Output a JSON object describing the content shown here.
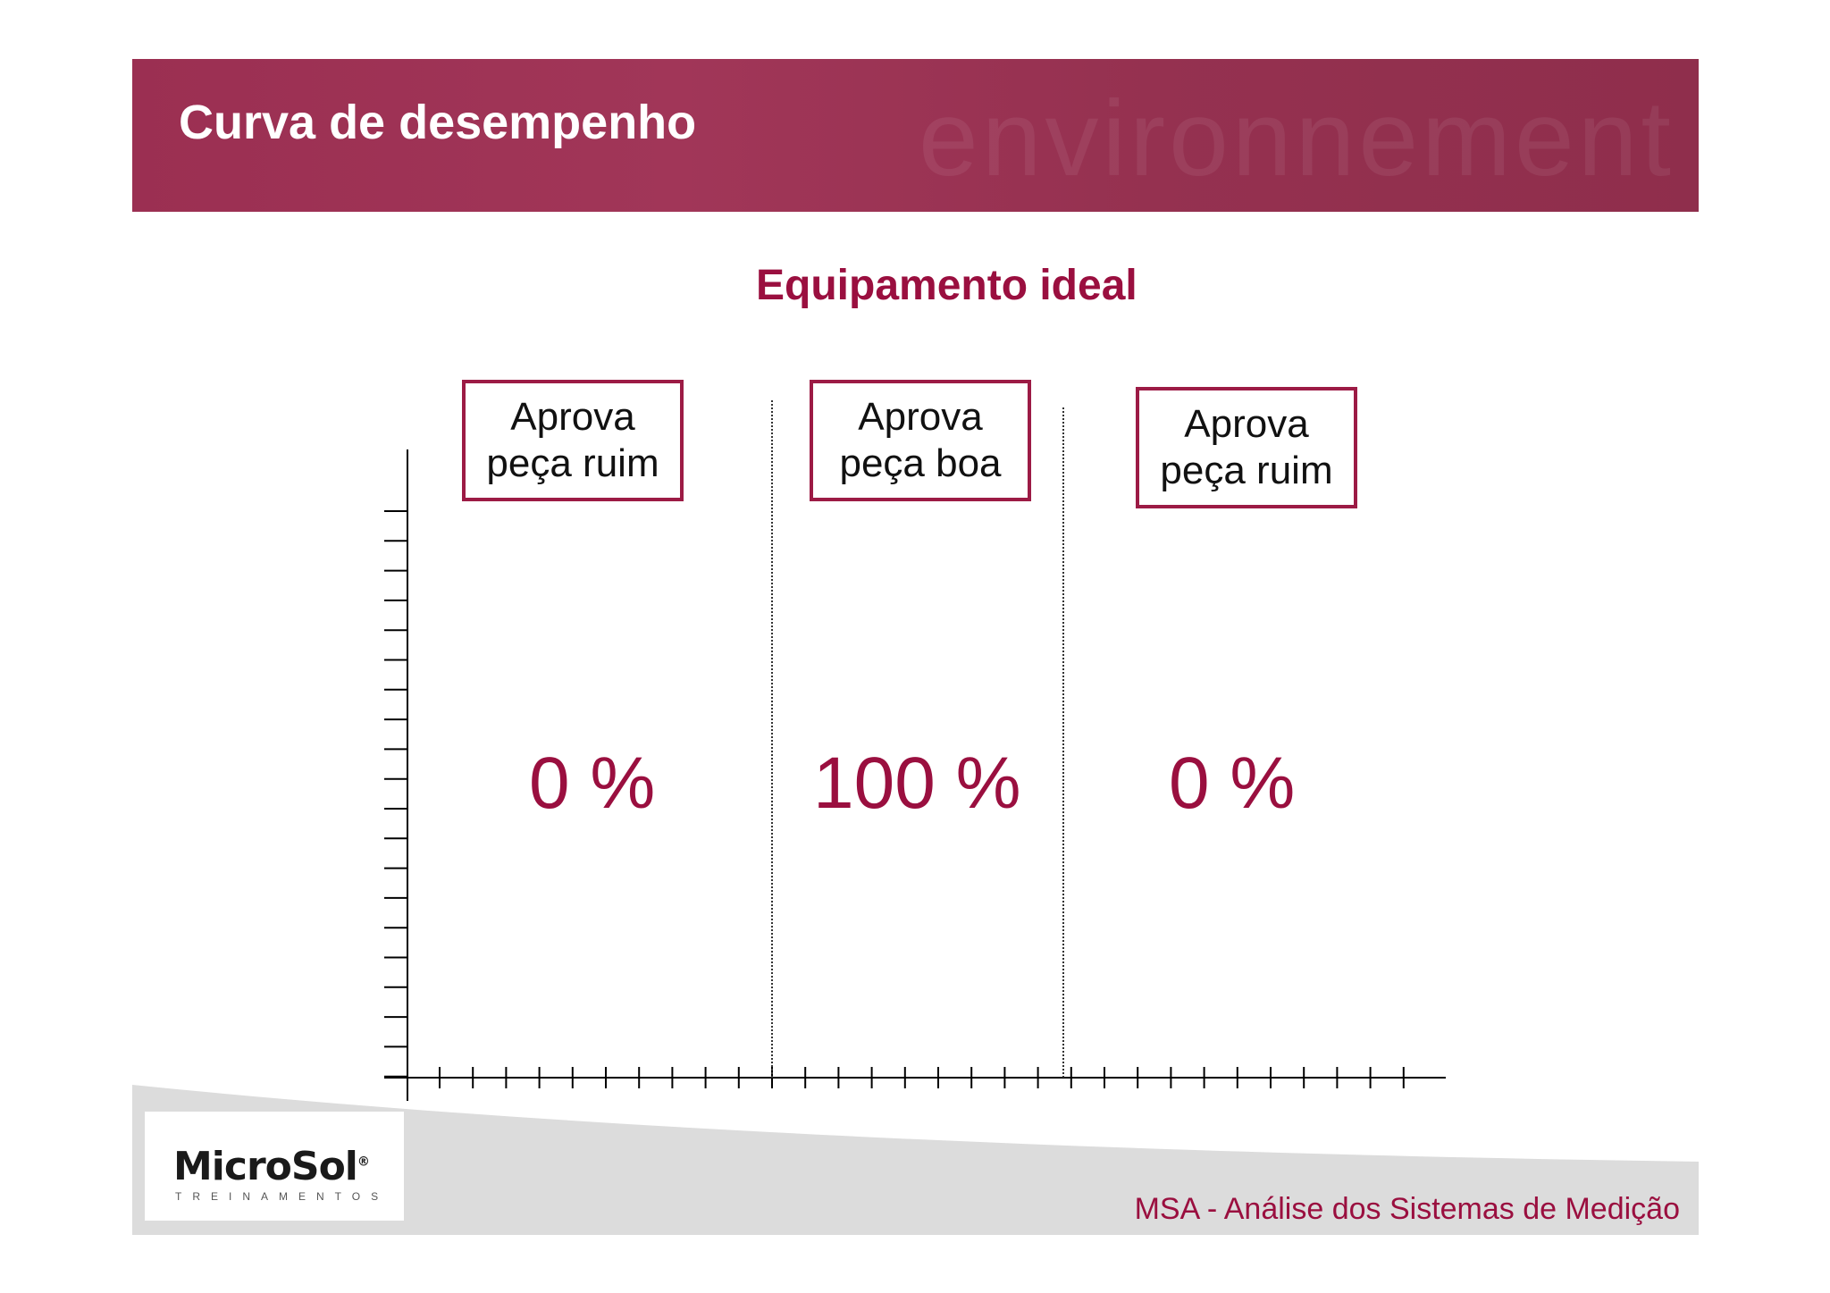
{
  "header": {
    "title": "Curva de desempenho",
    "watermark": "environnement"
  },
  "subtitle": "Equipamento ideal",
  "zones": [
    {
      "line1": "Aprova",
      "line2": "peça ruim",
      "value": "0 %"
    },
    {
      "line1": "Aprova",
      "line2": "peça boa",
      "value": "100 %"
    },
    {
      "line1": "Aprova",
      "line2": "peça ruim",
      "value": "0 %"
    }
  ],
  "footer": {
    "logo": "MicroSol",
    "logo_registered": "®",
    "logo_sub": "TREINAMENTOS",
    "caption": "MSA - Análise dos Sistemas de Medição"
  },
  "colors": {
    "accent": "#9a0f3f",
    "header": "#9b2f52",
    "box_border": "#9c1b45"
  }
}
